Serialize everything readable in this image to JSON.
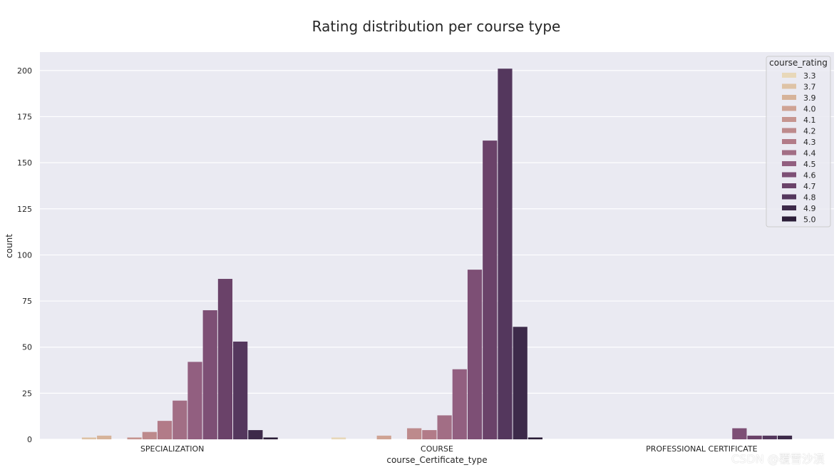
{
  "chart_data": {
    "type": "bar",
    "title": "Rating distribution per course type",
    "xlabel": "course_Certificate_type",
    "ylabel": "count",
    "ylim": [
      0,
      210
    ],
    "yticks": [
      0,
      25,
      50,
      75,
      100,
      125,
      150,
      175,
      200
    ],
    "categories": [
      "SPECIALIZATION",
      "COURSE",
      "PROFESSIONAL CERTIFICATE"
    ],
    "legend_title": "course_rating",
    "legend_position": "top-right",
    "grid": true,
    "series": [
      {
        "name": "3.3",
        "color": "#e8d8b9",
        "values": [
          0,
          1,
          0
        ]
      },
      {
        "name": "3.7",
        "color": "#dec3a6",
        "values": [
          1,
          0,
          0
        ]
      },
      {
        "name": "3.9",
        "color": "#d6b39a",
        "values": [
          2,
          0,
          0
        ]
      },
      {
        "name": "4.0",
        "color": "#cfa394",
        "values": [
          0,
          2,
          0
        ]
      },
      {
        "name": "4.1",
        "color": "#c69590",
        "values": [
          1,
          0,
          0
        ]
      },
      {
        "name": "4.2",
        "color": "#bd8a8c",
        "values": [
          4,
          6,
          0
        ]
      },
      {
        "name": "4.3",
        "color": "#b27b88",
        "values": [
          10,
          5,
          0
        ]
      },
      {
        "name": "4.4",
        "color": "#a26e85",
        "values": [
          21,
          13,
          0
        ]
      },
      {
        "name": "4.5",
        "color": "#925f80",
        "values": [
          42,
          38,
          0
        ]
      },
      {
        "name": "4.6",
        "color": "#7d4f75",
        "values": [
          70,
          92,
          6
        ]
      },
      {
        "name": "4.7",
        "color": "#6a4269",
        "values": [
          87,
          162,
          2
        ]
      },
      {
        "name": "4.8",
        "color": "#54375d",
        "values": [
          53,
          201,
          2
        ]
      },
      {
        "name": "4.9",
        "color": "#3d2a4a",
        "values": [
          5,
          61,
          2
        ]
      },
      {
        "name": "5.0",
        "color": "#2b1d38",
        "values": [
          1,
          1,
          0
        ]
      }
    ]
  },
  "watermark": "CSDN @覆雪沙漠"
}
